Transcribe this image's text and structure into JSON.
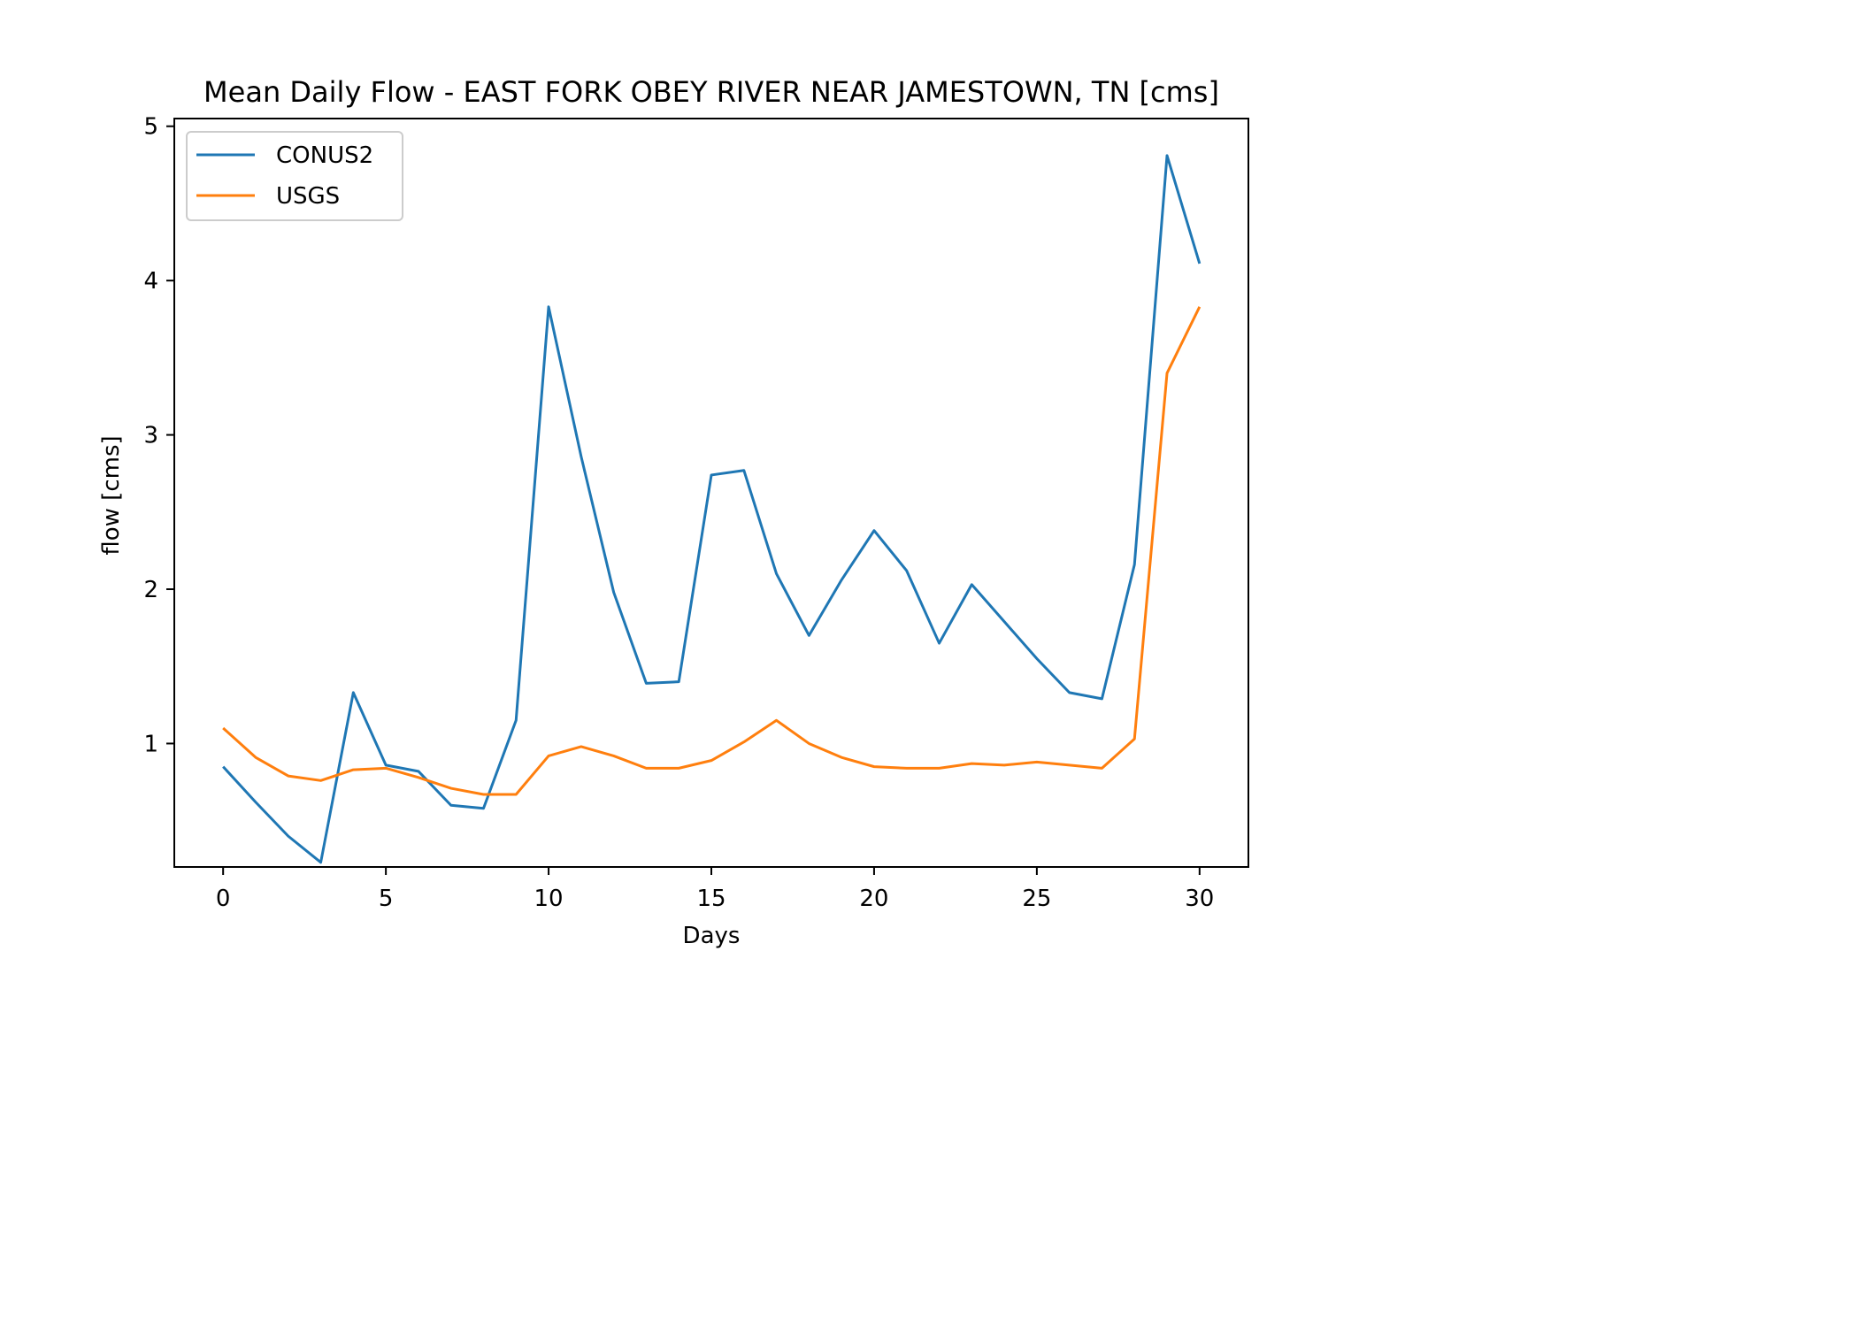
{
  "chart_data": {
    "type": "line",
    "title": "Mean Daily Flow - EAST FORK OBEY RIVER NEAR JAMESTOWN, TN [cms]",
    "xlabel": "Days",
    "ylabel": "flow [cms]",
    "xlim": [
      -1.5,
      31.5
    ],
    "ylim": [
      0.2,
      5.05
    ],
    "xticks": [
      0,
      5,
      10,
      15,
      20,
      25,
      30
    ],
    "yticks": [
      1,
      2,
      3,
      4,
      5
    ],
    "grid": false,
    "legend_position": "upper-left",
    "x": [
      0,
      1,
      2,
      3,
      4,
      5,
      6,
      7,
      8,
      9,
      10,
      11,
      12,
      13,
      14,
      15,
      16,
      17,
      18,
      19,
      20,
      21,
      22,
      23,
      24,
      25,
      26,
      27,
      28,
      29,
      30
    ],
    "series": [
      {
        "name": "CONUS2",
        "color": "#1f77b4",
        "values": [
          0.85,
          0.62,
          0.4,
          0.23,
          1.33,
          0.86,
          0.82,
          0.6,
          0.58,
          1.15,
          3.83,
          2.86,
          1.98,
          1.39,
          1.4,
          2.74,
          2.77,
          2.1,
          1.7,
          2.06,
          2.38,
          2.12,
          1.65,
          2.03,
          1.79,
          1.55,
          1.33,
          1.29,
          2.16,
          4.81,
          4.11
        ]
      },
      {
        "name": "USGS",
        "color": "#ff7f0e",
        "values": [
          1.1,
          0.91,
          0.79,
          0.76,
          0.83,
          0.84,
          0.78,
          0.71,
          0.67,
          0.67,
          0.92,
          0.98,
          0.92,
          0.84,
          0.84,
          0.89,
          1.01,
          1.15,
          1.0,
          0.91,
          0.85,
          0.84,
          0.84,
          0.87,
          0.86,
          0.88,
          0.86,
          0.84,
          1.03,
          3.4,
          3.83
        ]
      }
    ]
  }
}
